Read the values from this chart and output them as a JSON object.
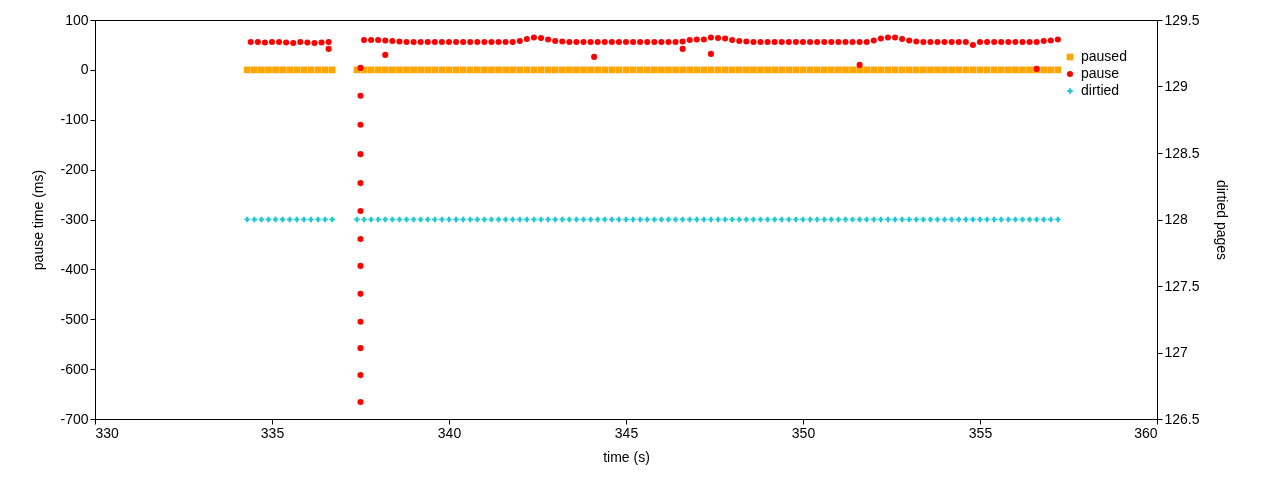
{
  "chart_data": {
    "type": "scatter",
    "xlabel": "time (s)",
    "ylabel": "pause time (ms)",
    "y2label": "dirtied pages",
    "xlim": [
      330,
      360
    ],
    "xticks": [
      330,
      335,
      340,
      345,
      350,
      355,
      360
    ],
    "ylim": [
      -700,
      100
    ],
    "yticks": [
      -700,
      -600,
      -500,
      -400,
      -300,
      -200,
      -100,
      0,
      100
    ],
    "y2lim": [
      126.5,
      129.5
    ],
    "y2ticks": [
      126.5,
      127,
      127.5,
      128,
      128.5,
      129,
      129.5
    ],
    "legend": "top right",
    "series": [
      {
        "name": "paused",
        "color": "#ffa500",
        "marker": "square",
        "x": [
          334.3,
          334.5,
          334.7,
          334.9,
          335.1,
          335.3,
          335.5,
          335.7,
          335.9,
          336.1,
          336.3,
          336.5,
          336.7,
          337.4,
          337.6,
          337.8,
          338,
          338.2,
          338.4,
          338.6,
          338.8,
          339,
          339.2,
          339.4,
          339.6,
          339.8,
          340,
          340.2,
          340.4,
          340.6,
          340.8,
          341,
          341.2,
          341.4,
          341.6,
          341.8,
          342,
          342.2,
          342.4,
          342.6,
          342.8,
          343,
          343.2,
          343.4,
          343.6,
          343.8,
          344,
          344.2,
          344.4,
          344.6,
          344.8,
          345,
          345.2,
          345.4,
          345.6,
          345.8,
          346,
          346.2,
          346.4,
          346.6,
          346.8,
          347,
          347.2,
          347.4,
          347.6,
          347.8,
          348,
          348.2,
          348.4,
          348.6,
          348.8,
          349,
          349.2,
          349.4,
          349.6,
          349.8,
          350,
          350.2,
          350.4,
          350.6,
          350.8,
          351,
          351.2,
          351.4,
          351.6,
          351.8,
          352,
          352.2,
          352.4,
          352.6,
          352.8,
          353,
          353.2,
          353.4,
          353.6,
          353.8,
          354,
          354.2,
          354.4,
          354.6,
          354.8,
          355,
          355.2,
          355.4,
          355.6,
          355.8,
          356,
          356.2,
          356.4,
          356.6,
          356.8,
          357,
          357.2
        ],
        "values": [
          0,
          0,
          0,
          0,
          0,
          0,
          0,
          0,
          0,
          0,
          0,
          0,
          0,
          0,
          0,
          0,
          0,
          0,
          0,
          0,
          0,
          0,
          0,
          0,
          0,
          0,
          0,
          0,
          0,
          0,
          0,
          0,
          0,
          0,
          0,
          0,
          0,
          0,
          0,
          0,
          0,
          0,
          0,
          0,
          0,
          0,
          0,
          0,
          0,
          0,
          0,
          0,
          0,
          0,
          0,
          0,
          0,
          0,
          0,
          0,
          0,
          0,
          0,
          0,
          0,
          0,
          0,
          0,
          0,
          0,
          0,
          0,
          0,
          0,
          0,
          0,
          0,
          0,
          0,
          0,
          0,
          0,
          0,
          0,
          0,
          0,
          0,
          0,
          0,
          0,
          0,
          0,
          0,
          0,
          0,
          0,
          0,
          0,
          0,
          0,
          0,
          0,
          0,
          0,
          0,
          0,
          0,
          0,
          0,
          0,
          0,
          0,
          0
        ]
      },
      {
        "name": "pause",
        "color": "#ff0000",
        "marker": "circle",
        "x": [
          334.4,
          334.6,
          334.8,
          335,
          335.2,
          335.4,
          335.6,
          335.8,
          336,
          336.2,
          336.4,
          336.6,
          336.6,
          337.5,
          337.5,
          337.5,
          337.5,
          337.5,
          337.5,
          337.5,
          337.5,
          337.5,
          337.5,
          337.5,
          337.5,
          337.5,
          337.6,
          337.8,
          338,
          338.2,
          338.4,
          338.6,
          338.8,
          339,
          339.2,
          339.4,
          339.6,
          339.8,
          340,
          340.2,
          340.4,
          340.6,
          340.8,
          341,
          341.2,
          341.4,
          341.6,
          341.8,
          342,
          342.2,
          342.4,
          342.6,
          342.8,
          343,
          343.2,
          343.4,
          343.6,
          343.8,
          344,
          344.2,
          344.4,
          344.6,
          344.8,
          345,
          345.2,
          345.4,
          345.6,
          345.8,
          346,
          346.2,
          346.4,
          346.6,
          346.8,
          347,
          347.2,
          347.4,
          347.6,
          347.8,
          348,
          348.2,
          348.4,
          348.6,
          348.8,
          349,
          349.2,
          349.4,
          349.6,
          349.8,
          350,
          350.2,
          350.4,
          350.6,
          350.8,
          351,
          351.2,
          351.4,
          351.6,
          351.8,
          352,
          352.2,
          352.4,
          352.6,
          352.8,
          353,
          353.2,
          353.4,
          353.6,
          353.8,
          354,
          354.2,
          354.4,
          354.6,
          354.8,
          355,
          355.2,
          355.4,
          355.6,
          355.8,
          356,
          356.2,
          356.4,
          356.6,
          356.8,
          357,
          357.2,
          338.2,
          344.1,
          346.6,
          347.4,
          351.6,
          356.6
        ],
        "values": [
          56,
          56,
          55,
          56,
          56,
          55,
          54,
          56,
          55,
          54,
          55,
          56,
          42,
          4,
          -52,
          -110,
          -169,
          -227,
          -283,
          -339,
          -393,
          -449,
          -505,
          -558,
          -612,
          -666,
          60,
          60,
          60,
          59,
          58,
          57,
          56,
          56,
          56,
          56,
          56,
          56,
          56,
          56,
          56,
          56,
          56,
          56,
          56,
          56,
          56,
          56,
          58,
          62,
          65,
          64,
          61,
          58,
          57,
          56,
          56,
          56,
          56,
          56,
          56,
          56,
          56,
          56,
          56,
          56,
          56,
          56,
          56,
          56,
          56,
          57,
          60,
          61,
          61,
          65,
          64,
          63,
          60,
          58,
          57,
          56,
          56,
          56,
          56,
          56,
          56,
          56,
          56,
          56,
          56,
          56,
          56,
          56,
          56,
          56,
          56,
          56,
          59,
          63,
          65,
          65,
          62,
          59,
          57,
          56,
          56,
          56,
          56,
          56,
          56,
          56,
          50,
          56,
          56,
          56,
          56,
          56,
          56,
          56,
          56,
          56,
          58,
          59,
          61,
          30,
          26,
          42,
          32,
          10,
          2
        ]
      },
      {
        "name": "dirtied",
        "color": "#1ec8d2",
        "marker": "cross",
        "axis": "y2",
        "x": [
          334.3,
          334.5,
          334.7,
          334.9,
          335.1,
          335.3,
          335.5,
          335.7,
          335.9,
          336.1,
          336.3,
          336.5,
          336.7,
          337.4,
          337.6,
          337.8,
          338,
          338.2,
          338.4,
          338.6,
          338.8,
          339,
          339.2,
          339.4,
          339.6,
          339.8,
          340,
          340.2,
          340.4,
          340.6,
          340.8,
          341,
          341.2,
          341.4,
          341.6,
          341.8,
          342,
          342.2,
          342.4,
          342.6,
          342.8,
          343,
          343.2,
          343.4,
          343.6,
          343.8,
          344,
          344.2,
          344.4,
          344.6,
          344.8,
          345,
          345.2,
          345.4,
          345.6,
          345.8,
          346,
          346.2,
          346.4,
          346.6,
          346.8,
          347,
          347.2,
          347.4,
          347.6,
          347.8,
          348,
          348.2,
          348.4,
          348.6,
          348.8,
          349,
          349.2,
          349.4,
          349.6,
          349.8,
          350,
          350.2,
          350.4,
          350.6,
          350.8,
          351,
          351.2,
          351.4,
          351.6,
          351.8,
          352,
          352.2,
          352.4,
          352.6,
          352.8,
          353,
          353.2,
          353.4,
          353.6,
          353.8,
          354,
          354.2,
          354.4,
          354.6,
          354.8,
          355,
          355.2,
          355.4,
          355.6,
          355.8,
          356,
          356.2,
          356.4,
          356.6,
          356.8,
          357,
          357.2
        ],
        "values": [
          128,
          128,
          128,
          128,
          128,
          128,
          128,
          128,
          128,
          128,
          128,
          128,
          128,
          128,
          128,
          128,
          128,
          128,
          128,
          128,
          128,
          128,
          128,
          128,
          128,
          128,
          128,
          128,
          128,
          128,
          128,
          128,
          128,
          128,
          128,
          128,
          128,
          128,
          128,
          128,
          128,
          128,
          128,
          128,
          128,
          128,
          128,
          128,
          128,
          128,
          128,
          128,
          128,
          128,
          128,
          128,
          128,
          128,
          128,
          128,
          128,
          128,
          128,
          128,
          128,
          128,
          128,
          128,
          128,
          128,
          128,
          128,
          128,
          128,
          128,
          128,
          128,
          128,
          128,
          128,
          128,
          128,
          128,
          128,
          128,
          128,
          128,
          128,
          128,
          128,
          128,
          128,
          128,
          128,
          128,
          128,
          128,
          128,
          128,
          128,
          128,
          128,
          128,
          128,
          128,
          128,
          128,
          128,
          128,
          128,
          128,
          128,
          128
        ]
      }
    ]
  }
}
